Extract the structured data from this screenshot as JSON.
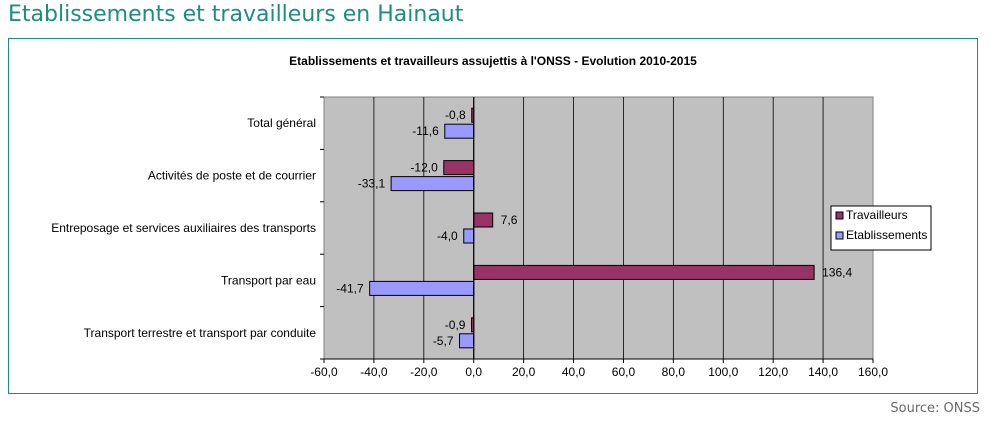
{
  "page": {
    "title": "Etablissements et travailleurs en Hainaut",
    "source": "Source: ONSS"
  },
  "colors": {
    "accent": "#1a8f7e",
    "plot_bg": "#c0c0c0",
    "travailleurs": "#993366",
    "etablissements": "#9999ff"
  },
  "chart_data": {
    "type": "bar",
    "orientation": "horizontal",
    "title": "Etablissements et travailleurs assujettis à l'ONSS  - Evolution  2010-2015",
    "categories": [
      "Total général",
      "Activités de poste et de courrier",
      "Entreposage et services auxiliaires des transports",
      "Transport par eau",
      "Transport terrestre et transport par conduite"
    ],
    "series": [
      {
        "name": "Travailleurs",
        "values": [
          -0.8,
          -12.0,
          7.6,
          136.4,
          -0.9
        ],
        "labels": [
          "-0,8",
          "-12,0",
          "7,6",
          "136,4",
          "-0,9"
        ]
      },
      {
        "name": "Etablissements",
        "values": [
          -11.6,
          -33.1,
          -4.0,
          -41.7,
          -5.7
        ],
        "labels": [
          "-11,6",
          "-33,1",
          "-4,0",
          "-41,7",
          "-5,7"
        ]
      }
    ],
    "xlim": [
      -60,
      160
    ],
    "xticks": [
      -60,
      -40,
      -20,
      0,
      20,
      40,
      60,
      80,
      100,
      120,
      140,
      160
    ],
    "xtick_labels": [
      "-60,0",
      "-40,0",
      "-20,0",
      "0,0",
      "20,0",
      "40,0",
      "60,0",
      "80,0",
      "100,0",
      "120,0",
      "140,0",
      "160,0"
    ],
    "legend_position": "right",
    "grid": true
  }
}
